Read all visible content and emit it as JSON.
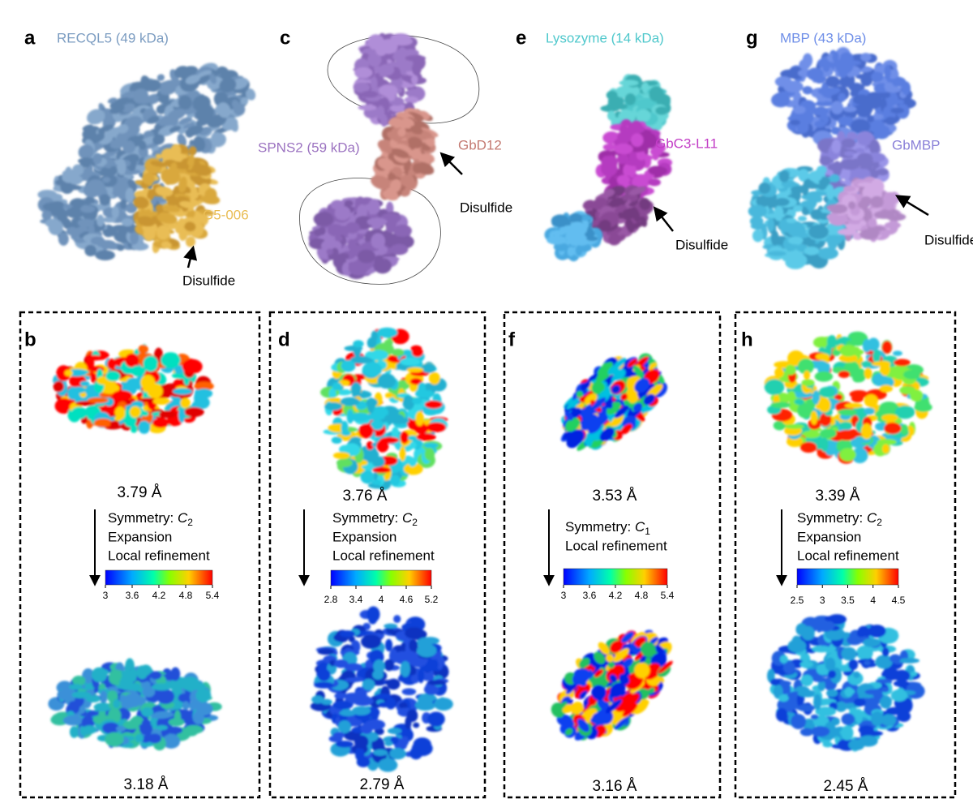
{
  "top": [
    {
      "letter": "a",
      "title": "RECQL5 (49 kDa)",
      "labels": [
        "G5-006"
      ],
      "arrow_label": "Disulfide"
    },
    {
      "letter": "c",
      "labels": [
        "SPNS2 (59 kDa)",
        "GbD12"
      ],
      "arrow_label": "Disulfide"
    },
    {
      "letter": "e",
      "title": "Lysozyme (14 kDa)",
      "labels": [
        "GbC3-L11"
      ],
      "arrow_label": "Disulfide"
    },
    {
      "letter": "g",
      "title": "MBP (43 kDa)",
      "labels": [
        "GbMBP"
      ],
      "arrow_label": "Disulfide"
    }
  ],
  "bottom": [
    {
      "letter": "b",
      "before": "3.79 Å",
      "symmetry": {
        "label": "Symmetry:",
        "group": "C",
        "order": "2"
      },
      "steps": [
        "Expansion",
        "Local refinement"
      ],
      "colorbar_ticks": [
        3,
        3.6,
        4.2,
        4.8,
        5.4
      ],
      "after": "3.18 Å"
    },
    {
      "letter": "d",
      "before": "3.76 Å",
      "symmetry": {
        "label": "Symmetry:",
        "group": "C",
        "order": "2"
      },
      "steps": [
        "Expansion",
        "Local refinement"
      ],
      "colorbar_ticks": [
        2.8,
        3.4,
        4,
        4.6,
        5.2
      ],
      "after": "2.79 Å"
    },
    {
      "letter": "f",
      "before": "3.53 Å",
      "symmetry": {
        "label": "Symmetry:",
        "group": "C",
        "order": "1"
      },
      "steps": [
        "Local refinement"
      ],
      "colorbar_ticks": [
        3,
        3.6,
        4.2,
        4.8,
        5.4
      ],
      "after": "3.16 Å"
    },
    {
      "letter": "h",
      "before": "3.39 Å",
      "symmetry": {
        "label": "Symmetry:",
        "group": "C",
        "order": "2"
      },
      "steps": [
        "Expansion",
        "Local refinement"
      ],
      "colorbar_ticks": [
        2.5,
        3,
        3.5,
        4,
        4.5
      ],
      "after": "2.45 Å"
    }
  ]
}
